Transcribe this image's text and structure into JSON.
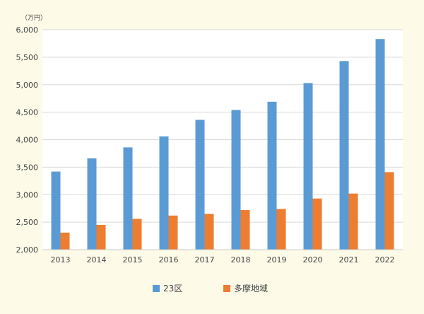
{
  "chart_data": {
    "type": "bar",
    "unit_label": "（万円）",
    "categories": [
      "2013",
      "2014",
      "2015",
      "2016",
      "2017",
      "2018",
      "2019",
      "2020",
      "2021",
      "2022"
    ],
    "series": [
      {
        "name": "23区",
        "color": "#5b9bd5",
        "values": [
          3420,
          3660,
          3860,
          4060,
          4360,
          4540,
          4690,
          5030,
          5430,
          5830
        ]
      },
      {
        "name": "多摩地域",
        "color": "#ed7d31",
        "values": [
          2310,
          2450,
          2560,
          2620,
          2650,
          2720,
          2740,
          2930,
          3020,
          3410
        ]
      }
    ],
    "ylim": [
      2000,
      6000
    ],
    "yticks": [
      "2,000",
      "2,500",
      "3,000",
      "3,500",
      "4,000",
      "4,500",
      "5,000",
      "5,500",
      "6,000"
    ],
    "grid": true,
    "legend_position": "bottom"
  }
}
